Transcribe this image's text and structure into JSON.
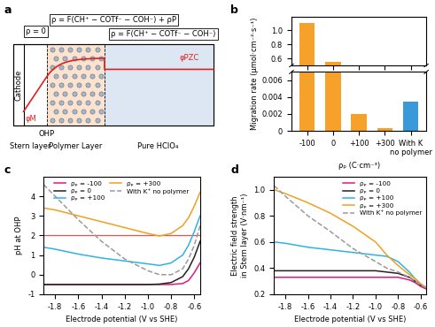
{
  "diagram": {
    "panel_label": "a",
    "regions": {
      "electrode": "Cathode",
      "stern": "Stern layer",
      "polymer": "Polymer Layer",
      "bulk": "Pure HClO₄"
    },
    "plane": "OHP",
    "charge_density": {
      "stern": "ρ = 0",
      "polymer": "ρ = F(CH⁺ − COTf⁻ − COH⁻) + ρP",
      "bulk": "ρ = F(CH⁺ − COTf⁻ − COH⁻)"
    },
    "potentials": {
      "electrode": "φM",
      "bulk": "φPZC"
    }
  },
  "chart_data": [
    {
      "panel_label": "b",
      "type": "bar",
      "categories": [
        "-100",
        "0",
        "+100",
        "+300",
        "With K\nno polymer"
      ],
      "values": [
        1.1,
        0.55,
        0.002,
        0.0003,
        0.0035
      ],
      "colors": [
        "#f5a12a",
        "#f5a12a",
        "#f5a12a",
        "#f5a12a",
        "#3a9ad9"
      ],
      "xlabel": "ρₚ (C·cm⁻³)",
      "ylabel": "Migration rate (μmol·cm⁻²·s⁻¹)",
      "ylim": [
        [
          0,
          0.007
        ],
        [
          0.5,
          1.2
        ]
      ],
      "yticks": [
        [
          0,
          0.002,
          0.004,
          0.006
        ],
        [
          0.6,
          0.8,
          1.0
        ]
      ]
    },
    {
      "panel_label": "c",
      "type": "line",
      "x": [
        -1.9,
        -1.8,
        -1.6,
        -1.4,
        -1.2,
        -1.0,
        -0.9,
        -0.8,
        -0.7,
        -0.65,
        -0.6,
        -0.55
      ],
      "series": [
        {
          "name": "ρₚ = -100",
          "color": "#e2187f",
          "line_style": "solid",
          "values": [
            -0.5,
            -0.5,
            -0.5,
            -0.5,
            -0.5,
            -0.5,
            -0.5,
            -0.5,
            -0.45,
            -0.3,
            0.1,
            0.6
          ]
        },
        {
          "name": "ρₚ = 0",
          "color": "#222222",
          "line_style": "solid",
          "values": [
            -0.5,
            -0.5,
            -0.5,
            -0.5,
            -0.5,
            -0.5,
            -0.48,
            -0.4,
            -0.1,
            0.3,
            0.9,
            1.7
          ]
        },
        {
          "name": "ρₚ = +100",
          "color": "#2fb3e0",
          "line_style": "solid",
          "values": [
            1.4,
            1.3,
            1.05,
            0.85,
            0.7,
            0.55,
            0.47,
            0.6,
            1.0,
            1.5,
            2.2,
            3.0
          ]
        },
        {
          "name": "ρₚ = +300",
          "color": "#f0a020",
          "line_style": "solid",
          "values": [
            3.4,
            3.3,
            3.0,
            2.7,
            2.4,
            2.1,
            1.97,
            2.1,
            2.5,
            2.9,
            3.5,
            4.2
          ]
        },
        {
          "name": "With K⁺ no polymer",
          "color": "#9a9a9a",
          "line_style": "dashed",
          "values": [
            4.6,
            4.0,
            2.8,
            1.7,
            0.8,
            0.2,
            0.0,
            0.0,
            0.3,
            0.8,
            1.5,
            2.5
          ]
        }
      ],
      "reference_lines": [
        {
          "y": 2,
          "color": "#f0504a"
        }
      ],
      "xlabel": "Electrode potential (V vs SHE)",
      "ylabel": "pH at OHP",
      "xlim": [
        -1.9,
        -0.55
      ],
      "xticks": [
        -1.8,
        -1.6,
        -1.4,
        -1.2,
        -1.0,
        -0.8,
        -0.6
      ],
      "ylim": [
        -1,
        5
      ],
      "yticks": [
        -1,
        0,
        1,
        2,
        3,
        4
      ],
      "legend": "upper center"
    },
    {
      "panel_label": "d",
      "type": "line",
      "x": [
        -1.9,
        -1.8,
        -1.6,
        -1.4,
        -1.2,
        -1.0,
        -0.9,
        -0.8,
        -0.7,
        -0.65,
        -0.6,
        -0.55
      ],
      "series": [
        {
          "name": "ρₚ = -100",
          "color": "#e2187f",
          "line_style": "solid",
          "values": [
            0.33,
            0.33,
            0.33,
            0.33,
            0.33,
            0.33,
            0.33,
            0.33,
            0.31,
            0.29,
            0.26,
            0.24
          ]
        },
        {
          "name": "ρₚ = 0",
          "color": "#222222",
          "line_style": "solid",
          "values": [
            0.38,
            0.38,
            0.38,
            0.38,
            0.38,
            0.38,
            0.37,
            0.36,
            0.33,
            0.3,
            0.27,
            0.25
          ]
        },
        {
          "name": "ρₚ = +100",
          "color": "#2fb3e0",
          "line_style": "solid",
          "values": [
            0.6,
            0.59,
            0.56,
            0.54,
            0.52,
            0.5,
            0.49,
            0.45,
            0.37,
            0.32,
            0.28,
            0.25
          ]
        },
        {
          "name": "ρₚ = +300",
          "color": "#f0a020",
          "line_style": "solid",
          "values": [
            1.0,
            0.97,
            0.9,
            0.82,
            0.72,
            0.6,
            0.5,
            0.42,
            0.35,
            0.32,
            0.28,
            0.25
          ]
        },
        {
          "name": "With K⁺ no polymer",
          "color": "#9a9a9a",
          "line_style": "dashed",
          "values": [
            1.03,
            0.95,
            0.8,
            0.68,
            0.55,
            0.45,
            0.4,
            0.37,
            0.33,
            0.3,
            0.27,
            0.25
          ]
        }
      ],
      "xlabel": "Electrode potential (V vs SHE)",
      "ylabel": "Electric field strength\nin Stern layer (V·nm⁻¹)",
      "xlim": [
        -1.9,
        -0.55
      ],
      "xticks": [
        -1.8,
        -1.6,
        -1.4,
        -1.2,
        -1.0,
        -0.8,
        -0.6
      ],
      "ylim": [
        0.2,
        1.1
      ],
      "yticks": [
        0.2,
        0.4,
        0.6,
        0.8,
        1.0
      ],
      "legend": "upper right"
    }
  ]
}
